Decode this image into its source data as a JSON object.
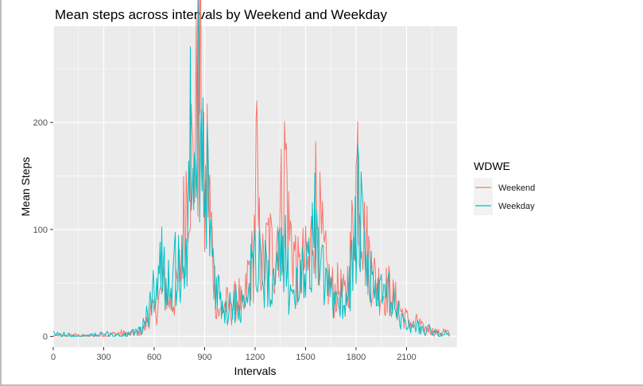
{
  "chart_data": {
    "type": "line",
    "title": "Mean steps across intervals by Weekend and Weekday",
    "xlabel": "Intervals",
    "ylabel": "Mean Steps",
    "xlim": [
      0,
      2400
    ],
    "ylim": [
      -10,
      290
    ],
    "x_ticks": [
      0,
      300,
      600,
      900,
      1200,
      1500,
      1800,
      2100
    ],
    "y_ticks": [
      0,
      100,
      200
    ],
    "grid": true,
    "legend": {
      "title": "WDWE",
      "position": "right"
    },
    "x_keypoints": [
      0,
      100,
      200,
      300,
      400,
      450,
      500,
      530,
      550,
      580,
      600,
      630,
      660,
      700,
      730,
      760,
      800,
      815,
      830,
      845,
      860,
      875,
      885,
      900,
      915,
      930,
      950,
      970,
      990,
      1000,
      1030,
      1060,
      1100,
      1130,
      1160,
      1190,
      1210,
      1215,
      1230,
      1250,
      1280,
      1310,
      1340,
      1370,
      1380,
      1400,
      1430,
      1460,
      1490,
      1520,
      1550,
      1560,
      1580,
      1610,
      1640,
      1670,
      1700,
      1730,
      1760,
      1790,
      1810,
      1830,
      1850,
      1870,
      1900,
      1930,
      1960,
      1990,
      2020,
      2050,
      2080,
      2110,
      2140,
      2170,
      2200,
      2230,
      2260,
      2290,
      2320,
      2355
    ],
    "series": [
      {
        "name": "Weekend",
        "color": "#F8766D",
        "values": [
          0,
          1,
          0,
          1,
          3,
          2,
          3,
          6,
          10,
          25,
          20,
          35,
          45,
          30,
          40,
          70,
          160,
          175,
          150,
          200,
          205,
          270,
          190,
          110,
          160,
          120,
          70,
          30,
          20,
          25,
          30,
          25,
          40,
          20,
          60,
          70,
          175,
          110,
          80,
          60,
          90,
          70,
          110,
          130,
          175,
          100,
          80,
          55,
          70,
          60,
          120,
          130,
          105,
          70,
          50,
          40,
          45,
          35,
          60,
          120,
          170,
          135,
          90,
          80,
          55,
          50,
          40,
          45,
          35,
          30,
          20,
          15,
          10,
          14,
          6,
          8,
          4,
          3,
          5,
          2
        ]
      },
      {
        "name": "Weekday",
        "color": "#00BFC4",
        "values": [
          2,
          1,
          0,
          2,
          1,
          2,
          4,
          10,
          15,
          30,
          50,
          70,
          60,
          55,
          65,
          60,
          90,
          175,
          170,
          160,
          210,
          230,
          215,
          170,
          150,
          110,
          60,
          35,
          40,
          30,
          25,
          30,
          35,
          25,
          60,
          75,
          90,
          80,
          65,
          55,
          60,
          45,
          70,
          60,
          80,
          50,
          45,
          40,
          60,
          75,
          105,
          95,
          70,
          50,
          40,
          35,
          40,
          30,
          50,
          80,
          115,
          100,
          70,
          60,
          50,
          40,
          35,
          40,
          30,
          20,
          15,
          10,
          8,
          10,
          5,
          6,
          4,
          2,
          3,
          1
        ]
      }
    ]
  }
}
